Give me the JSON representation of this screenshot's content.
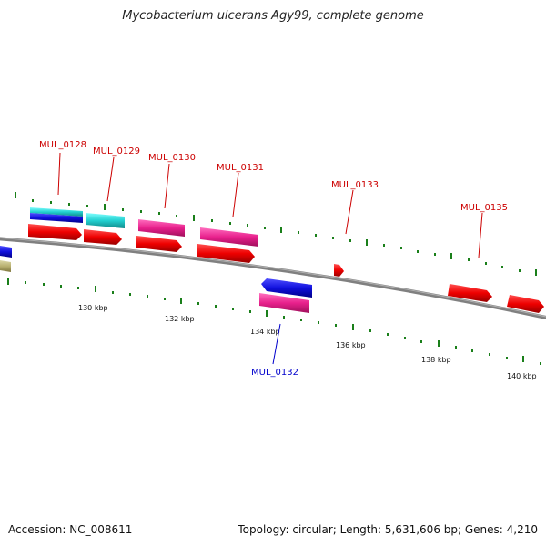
{
  "header": {
    "title": "Mycobacterium ulcerans Agy99, complete genome"
  },
  "footer": {
    "accession": "Accession: NC_008611",
    "summary": "Topology: circular; Length: 5,631,606 bp; Genes: 4,210"
  },
  "colors": {
    "backbone": "#777777",
    "forward_tick": "#1a7f1a",
    "reverse_tick": "#1a7f1a",
    "label_forward": "#cc0000",
    "label_reverse": "#0000cc",
    "red": "#ee0000",
    "pink": "#e8208c",
    "blue": "#1010dd",
    "cyan": "#22d0d0",
    "olive": "#b8b070"
  },
  "ruler": {
    "ticks": [
      {
        "label": "130 kbp"
      },
      {
        "label": "132 kbp"
      },
      {
        "label": "134 kbp"
      },
      {
        "label": "136 kbp"
      },
      {
        "label": "138 kbp"
      },
      {
        "label": "140 kbp"
      }
    ]
  },
  "gene_labels": [
    {
      "id": "MUL_0128",
      "strand": "forward"
    },
    {
      "id": "MUL_0129",
      "strand": "forward"
    },
    {
      "id": "MUL_0130",
      "strand": "forward"
    },
    {
      "id": "MUL_0131",
      "strand": "forward"
    },
    {
      "id": "MUL_0132",
      "strand": "reverse"
    },
    {
      "id": "MUL_0133",
      "strand": "forward"
    },
    {
      "id": "MUL_0135",
      "strand": "forward"
    }
  ]
}
